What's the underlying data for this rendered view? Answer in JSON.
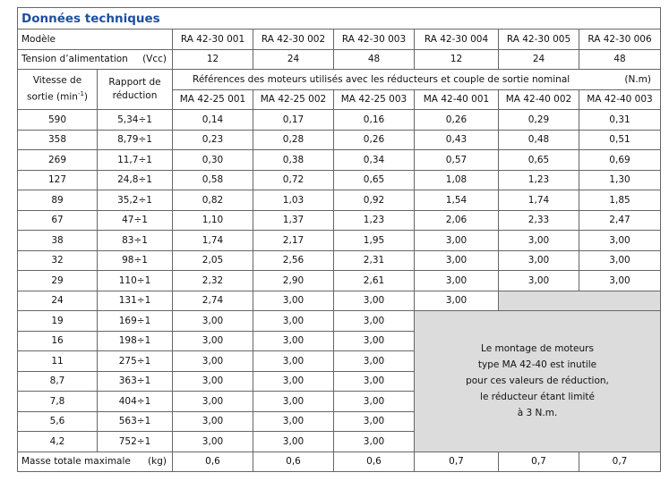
{
  "title": "Données techniques",
  "model_label": "Modèle",
  "models": [
    "RA 42-30 001",
    "RA 42-30 002",
    "RA 42-30 003",
    "RA 42-30 004",
    "RA 42-30 005",
    "RA 42-30 006"
  ],
  "voltage_label": "Tension d’alimentation",
  "voltage_unit": "(Vcc)",
  "voltages": [
    "12",
    "24",
    "48",
    "12",
    "24",
    "48"
  ],
  "speed_header": {
    "line1": "Vitesse de",
    "line2": "sortie (min",
    "sup": "-1",
    "end": ")"
  },
  "ratio_header": {
    "line1": "Rapport de",
    "line2": "réduction"
  },
  "motors_header": "Références des moteurs utilisés avec les réducteurs et couple de sortie nominal",
  "motors_unit": "(N.m)",
  "motors": [
    "MA 42-25 001",
    "MA 42-25 002",
    "MA 42-25 003",
    "MA 42-40 001",
    "MA 42-40 002",
    "MA 42-40 003"
  ],
  "rows": [
    {
      "speed": "590",
      "ratio": "5,34÷1",
      "values": [
        "0,14",
        "0,17",
        "0,16",
        "0,26",
        "0,29",
        "0,31"
      ]
    },
    {
      "speed": "358",
      "ratio": "8,79÷1",
      "values": [
        "0,23",
        "0,28",
        "0,26",
        "0,43",
        "0,48",
        "0,51"
      ]
    },
    {
      "speed": "269",
      "ratio": "11,7÷1",
      "values": [
        "0,30",
        "0,38",
        "0,34",
        "0,57",
        "0,65",
        "0,69"
      ]
    },
    {
      "speed": "127",
      "ratio": "24,8÷1",
      "values": [
        "0,58",
        "0,72",
        "0,65",
        "1,08",
        "1,23",
        "1,30"
      ]
    },
    {
      "speed": "89",
      "ratio": "35,2÷1",
      "values": [
        "0,82",
        "1,03",
        "0,92",
        "1,54",
        "1,74",
        "1,85"
      ]
    },
    {
      "speed": "67",
      "ratio": "47÷1",
      "values": [
        "1,10",
        "1,37",
        "1,23",
        "2,06",
        "2,33",
        "2,47"
      ]
    },
    {
      "speed": "38",
      "ratio": "83÷1",
      "values": [
        "1,74",
        "2,17",
        "1,95",
        "3,00",
        "3,00",
        "3,00"
      ]
    },
    {
      "speed": "32",
      "ratio": "98÷1",
      "values": [
        "2,05",
        "2,56",
        "2,31",
        "3,00",
        "3,00",
        "3,00"
      ]
    },
    {
      "speed": "29",
      "ratio": "110÷1",
      "values": [
        "2,32",
        "2,90",
        "2,61",
        "3,00",
        "3,00",
        "3,00"
      ]
    },
    {
      "speed": "24",
      "ratio": "131÷1",
      "values": [
        "2,74",
        "3,00",
        "3,00",
        "3,00"
      ]
    },
    {
      "speed": "19",
      "ratio": "169÷1",
      "values": [
        "3,00",
        "3,00",
        "3,00"
      ]
    },
    {
      "speed": "16",
      "ratio": "198÷1",
      "values": [
        "3,00",
        "3,00",
        "3,00"
      ]
    },
    {
      "speed": "11",
      "ratio": "275÷1",
      "values": [
        "3,00",
        "3,00",
        "3,00"
      ]
    },
    {
      "speed": "8,7",
      "ratio": "363÷1",
      "values": [
        "3,00",
        "3,00",
        "3,00"
      ]
    },
    {
      "speed": "7,8",
      "ratio": "404÷1",
      "values": [
        "3,00",
        "3,00",
        "3,00"
      ]
    },
    {
      "speed": "5,6",
      "ratio": "563÷1",
      "values": [
        "3,00",
        "3,00",
        "3,00"
      ]
    },
    {
      "speed": "4,2",
      "ratio": "752÷1",
      "values": [
        "3,00",
        "3,00",
        "3,00"
      ]
    }
  ],
  "note": [
    "Le montage de moteurs",
    "type MA 42-40 est inutile",
    "pour ces valeurs de réduction,",
    "le réducteur étant limité",
    "à 3 N.m."
  ],
  "mass_label": "Masse totale maximale",
  "mass_unit": "(kg)",
  "masses": [
    "0,6",
    "0,6",
    "0,6",
    "0,7",
    "0,7",
    "0,7"
  ]
}
